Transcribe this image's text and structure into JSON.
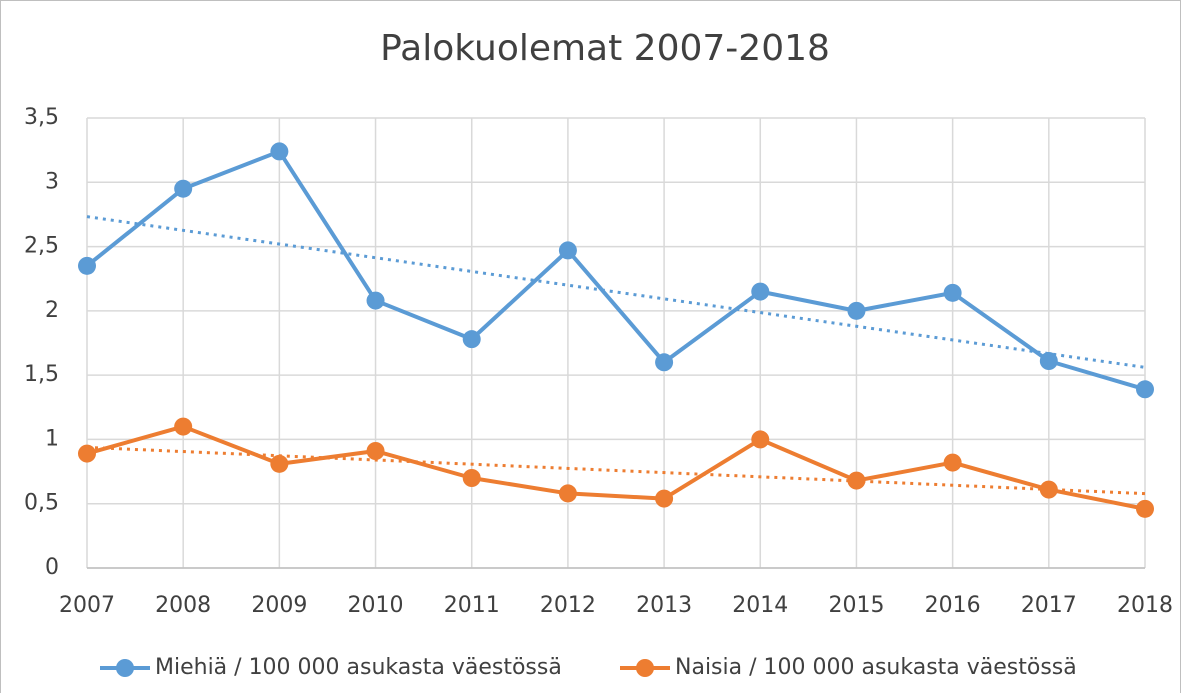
{
  "chart_data": {
    "type": "line",
    "title": "Palokuolemat 2007-2018",
    "categories": [
      "2007",
      "2008",
      "2009",
      "2010",
      "2011",
      "2012",
      "2013",
      "2014",
      "2015",
      "2016",
      "2017",
      "2018"
    ],
    "series": [
      {
        "name": "Miehiä / 100 000 asukasta väestössä",
        "color": "#5b9bd5",
        "values": [
          2.35,
          2.95,
          3.24,
          2.08,
          1.78,
          2.47,
          1.6,
          2.15,
          2.0,
          2.14,
          1.61,
          1.39
        ]
      },
      {
        "name": "Naisia / 100 000 asukasta väestössä",
        "color": "#ed7d31",
        "values": [
          0.89,
          1.1,
          0.81,
          0.91,
          0.7,
          0.58,
          0.54,
          1.0,
          0.68,
          0.82,
          0.61,
          0.46
        ]
      }
    ],
    "ylim": [
      0,
      3.5
    ],
    "yticks": [
      0,
      {
        "value": 0.5,
        "label": "0,5"
      },
      1,
      {
        "value": 1.5,
        "label": "1,5"
      },
      2,
      {
        "value": 2.5,
        "label": "2,5"
      },
      3,
      {
        "value": 3.5,
        "label": "3,5"
      }
    ],
    "grid": true,
    "trendline": "linear",
    "legend": "bottom"
  }
}
